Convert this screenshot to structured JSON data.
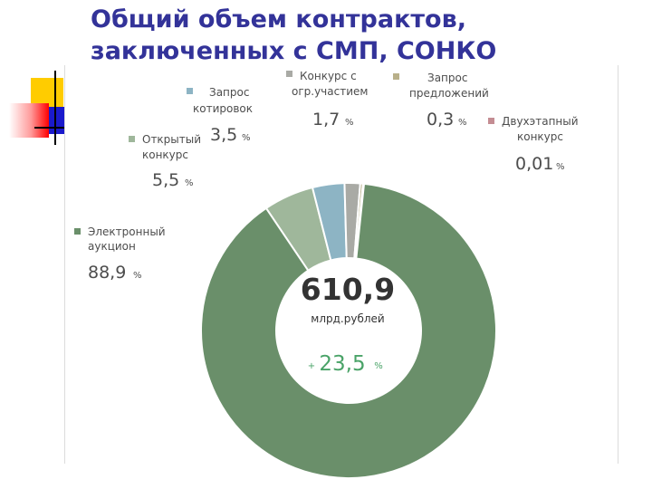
{
  "slide": {
    "title_line1": "Общий объем контрактов,",
    "title_line2": "заключенных с СМП, СОНКО"
  },
  "colors": {
    "title": "#333399",
    "deco_yellow": "#ffcc00",
    "deco_red": "#ff0000",
    "deco_blue": "#1a1acc"
  },
  "chart_data": {
    "type": "pie",
    "style": "donut",
    "center": {
      "total": "610,9",
      "unit": "млрд.рублей",
      "growth_sign": "+",
      "growth_value": "23,5",
      "growth_unit": "%"
    },
    "slices": [
      {
        "name_lines": [
          "Электронный",
          "аукцион"
        ],
        "value": 88.9,
        "value_label": "88,9",
        "pct": "%",
        "color": "#6a8f6a"
      },
      {
        "name_lines": [
          "Открытый",
          "конкурс"
        ],
        "value": 5.5,
        "value_label": "5,5",
        "pct": "%",
        "color": "#9fb79b"
      },
      {
        "name_lines": [
          "Запрос",
          "котировок"
        ],
        "value": 3.5,
        "value_label": "3,5",
        "pct": "%",
        "color": "#8db4c4"
      },
      {
        "name_lines": [
          "Конкурс с",
          "огр.участием"
        ],
        "value": 1.7,
        "value_label": "1,7",
        "pct": "%",
        "color": "#a9aaa5"
      },
      {
        "name_lines": [
          "Запрос",
          "предложений"
        ],
        "value": 0.3,
        "value_label": "0,3",
        "pct": "%",
        "color": "#b9b08a"
      },
      {
        "name_lines": [
          "Двухэтапный",
          "конкурс"
        ],
        "value": 0.01,
        "value_label": "0,01",
        "pct": "%",
        "color": "#c48d93"
      }
    ],
    "legend_placement": "labels around chart"
  }
}
